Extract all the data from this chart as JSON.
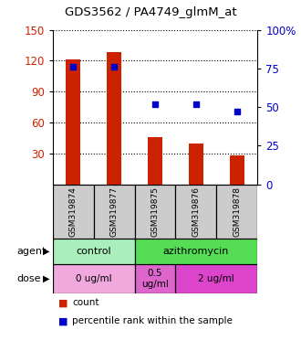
{
  "title": "GDS3562 / PA4749_glmM_at",
  "samples": [
    "GSM319874",
    "GSM319877",
    "GSM319875",
    "GSM319876",
    "GSM319878"
  ],
  "bar_values": [
    121,
    128,
    46,
    40,
    28
  ],
  "dot_values": [
    76,
    76,
    52,
    52,
    47
  ],
  "bar_color": "#cc2200",
  "dot_color": "#0000cc",
  "left_yticks": [
    30,
    60,
    90,
    120,
    150
  ],
  "right_ytick_vals": [
    0,
    25,
    50,
    75,
    100
  ],
  "right_ytick_labels": [
    "0",
    "25",
    "50",
    "75",
    "100%"
  ],
  "left_ylim": [
    0,
    150
  ],
  "right_ylim": [
    0,
    100
  ],
  "agent_groups": [
    {
      "label": "control",
      "span": [
        0,
        2
      ],
      "color": "#aaeebb"
    },
    {
      "label": "azithromycin",
      "span": [
        2,
        5
      ],
      "color": "#55dd55"
    }
  ],
  "dose_groups": [
    {
      "label": "0 ug/ml",
      "span": [
        0,
        2
      ],
      "color": "#f0a8dd"
    },
    {
      "label": "0.5\nug/ml",
      "span": [
        2,
        3
      ],
      "color": "#dd66cc"
    },
    {
      "label": "2 ug/ml",
      "span": [
        3,
        5
      ],
      "color": "#dd44cc"
    }
  ],
  "background_color": "#ffffff",
  "plot_bg_color": "#ffffff"
}
